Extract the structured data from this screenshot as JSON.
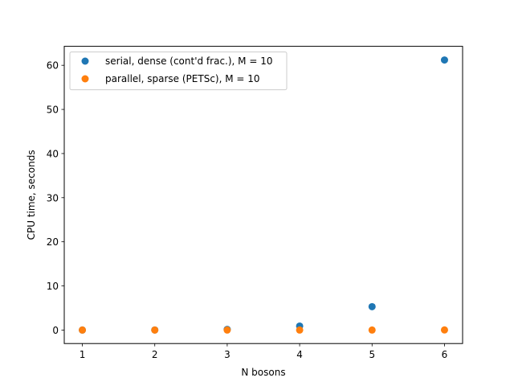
{
  "chart_data": {
    "type": "scatter",
    "title": "",
    "xlabel": "N bosons",
    "ylabel": "CPU time, seconds",
    "xlim": [
      0.75,
      6.25
    ],
    "ylim": [
      -3.06,
      64.3
    ],
    "xticks": [
      1,
      2,
      3,
      4,
      5,
      6
    ],
    "yticks": [
      0,
      10,
      20,
      30,
      40,
      50,
      60
    ],
    "grid": false,
    "legend_position": "upper left",
    "series": [
      {
        "name": "serial, dense (cont'd frac.), M = 10",
        "color": "#1f77b4",
        "x": [
          1,
          2,
          3,
          4,
          5,
          6
        ],
        "y": [
          0.0,
          0.01,
          0.15,
          0.9,
          5.3,
          61.2
        ]
      },
      {
        "name": "parallel, sparse (PETSc), M = 10",
        "color": "#ff7f0e",
        "x": [
          1,
          2,
          3,
          4,
          5,
          6
        ],
        "y": [
          0.0,
          0.0,
          0.0,
          0.0,
          0.0,
          0.02
        ]
      }
    ]
  }
}
